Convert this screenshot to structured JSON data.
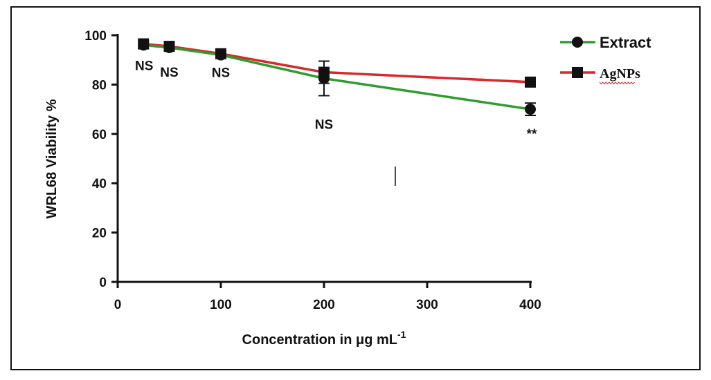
{
  "chart_data": {
    "type": "line",
    "xlabel": "Concentration in μg mL",
    "xlabel_sup": "-1",
    "ylabel": "WRL68 Viability %",
    "xlim": [
      0,
      400
    ],
    "ylim": [
      0,
      100
    ],
    "xticks": [
      "0",
      "100",
      "200",
      "300",
      "400"
    ],
    "yticks": [
      "0",
      "20",
      "40",
      "60",
      "80",
      "100"
    ],
    "grid": false,
    "legend_position": "top-right",
    "series": [
      {
        "name": "Extract",
        "marker": "circle",
        "color": "#2e9d2e",
        "x": [
          25,
          50,
          100,
          200,
          400
        ],
        "y": [
          96,
          95,
          92,
          82.5,
          70
        ],
        "error": [
          1.5,
          1,
          1,
          7,
          2.5
        ]
      },
      {
        "name": "AgNPs",
        "marker": "square",
        "color": "#d42a2a",
        "x": [
          25,
          50,
          100,
          200,
          400
        ],
        "y": [
          96.5,
          95.5,
          92.5,
          85,
          81
        ],
        "error": [
          1,
          1,
          1,
          4.5,
          1
        ]
      }
    ],
    "annotations": [
      {
        "text": "NS",
        "x": 25,
        "y": 96
      },
      {
        "text": "NS",
        "x": 50,
        "y": 95
      },
      {
        "text": "NS",
        "x": 100,
        "y": 92
      },
      {
        "text": "NS",
        "x": 200,
        "y": 82.5
      },
      {
        "text": "**",
        "x": 400,
        "y": 70
      }
    ]
  }
}
